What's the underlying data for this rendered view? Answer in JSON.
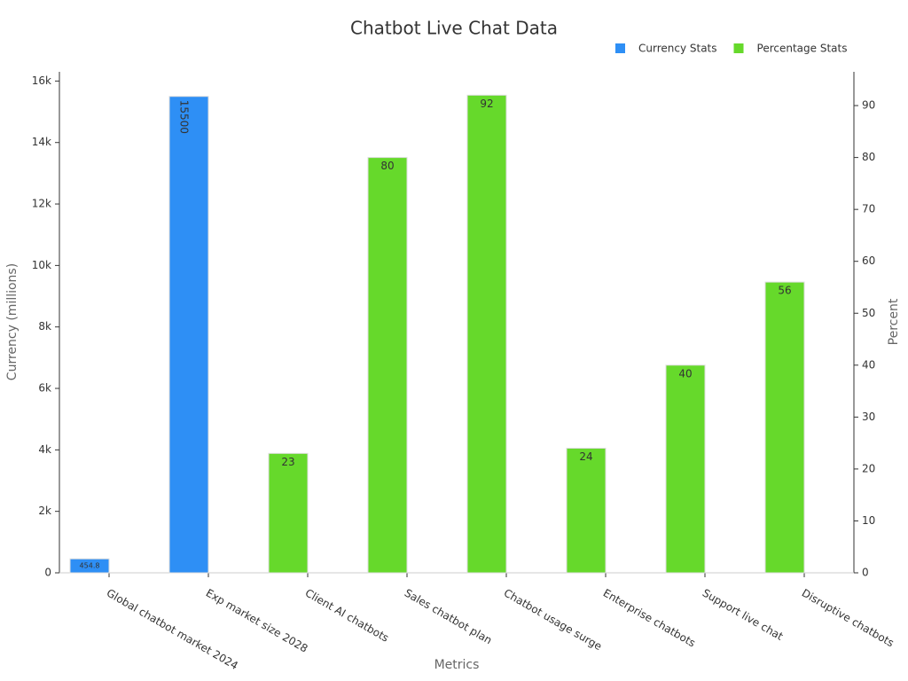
{
  "chart_data": {
    "type": "bar",
    "title": "Chatbot Live Chat Data",
    "xlabel": "Metrics",
    "ylabel": "Currency (millions)",
    "y2label": "Percent",
    "categories": [
      "Global chatbot market 2024",
      "Exp market size 2028",
      "Client AI chatbots",
      "Sales chatbot plan",
      "Chatbot usage surge",
      "Enterprise chatbots",
      "Support live chat",
      "Disruptive chatbots"
    ],
    "series": [
      {
        "name": "Currency Stats",
        "color": "#2e8ff5",
        "values": [
          454.8,
          15500,
          null,
          null,
          null,
          null,
          null,
          null
        ]
      },
      {
        "name": "Percentage Stats",
        "color": "#66d92b",
        "axis": "y2",
        "values": [
          null,
          null,
          23,
          80,
          92,
          24,
          40,
          56
        ]
      }
    ],
    "ylim": [
      0,
      16300
    ],
    "yticks": [
      0,
      {
        "value": 2000,
        "label": "2k"
      },
      {
        "value": 4000,
        "label": "4k"
      },
      {
        "value": 6000,
        "label": "6k"
      },
      {
        "value": 8000,
        "label": "8k"
      },
      {
        "value": 10000,
        "label": "10k"
      },
      {
        "value": 12000,
        "label": "12k"
      },
      {
        "value": 14000,
        "label": "14k"
      },
      {
        "value": 16000,
        "label": "16k"
      }
    ],
    "y2lim": [
      0,
      96.5
    ],
    "y2ticks": [
      0,
      10,
      20,
      30,
      40,
      50,
      60,
      70,
      80,
      90
    ],
    "legend": "top-right"
  }
}
